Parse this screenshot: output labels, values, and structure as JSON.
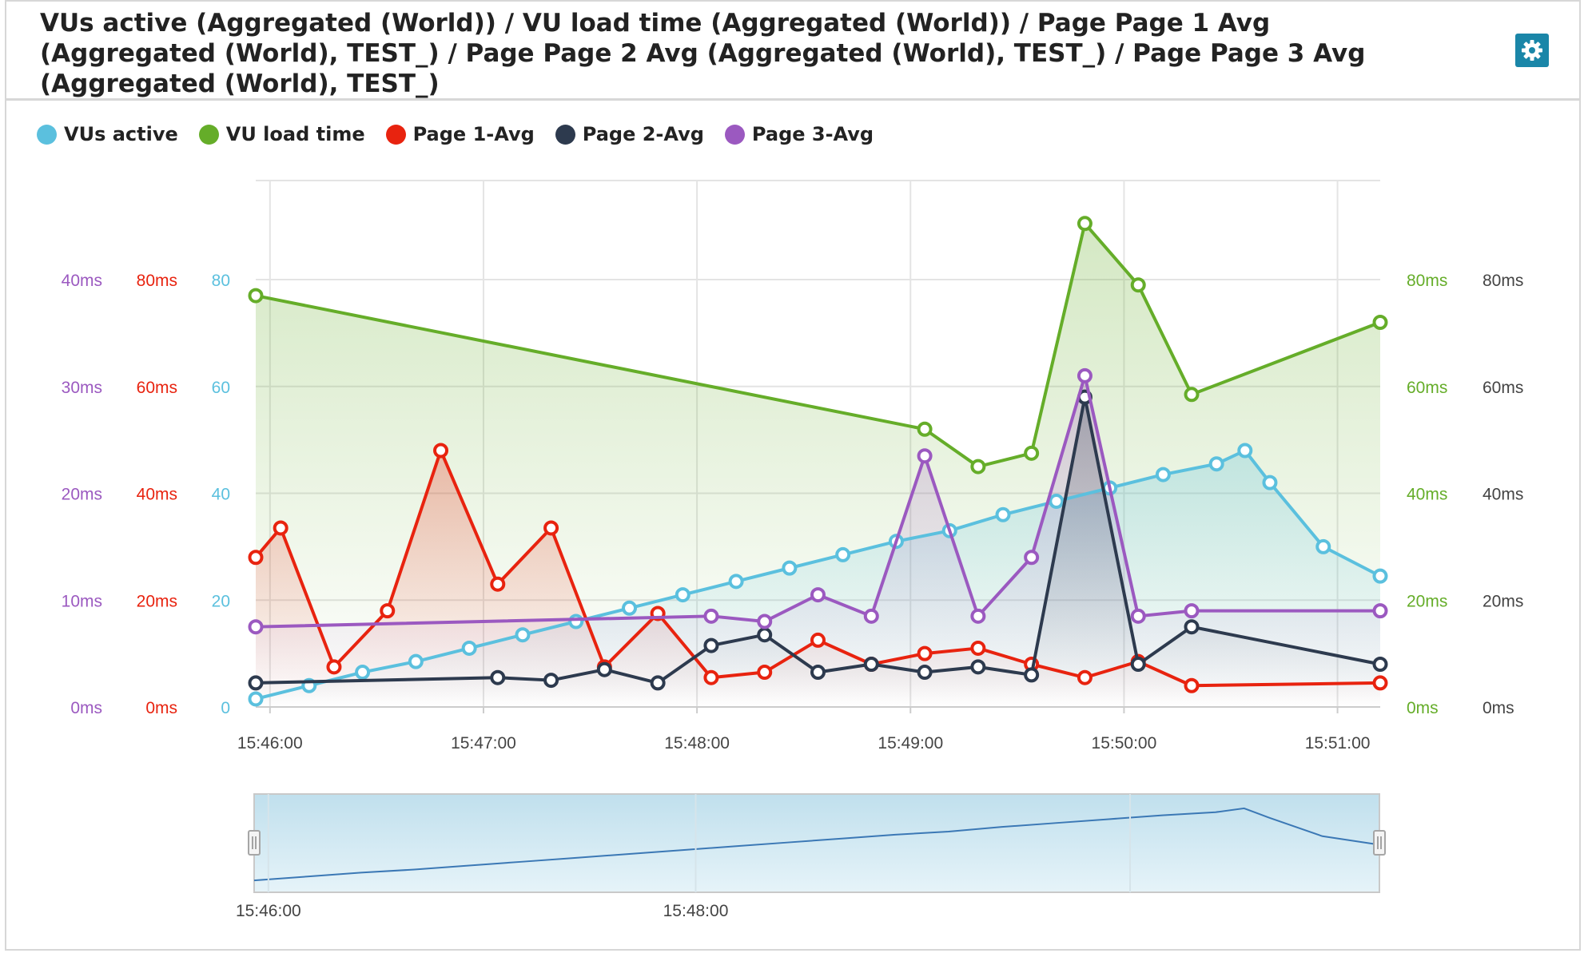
{
  "title": "VUs active (Aggregated (World)) / VU load time (Aggregated (World)) / Page Page 1 Avg (Aggregated (World), TEST_) / Page Page 2 Avg (Aggregated (World), TEST_) / Page Page 3 Avg (Aggregated (World), TEST_)",
  "settings_icon": "gear-icon",
  "colors": {
    "vus": "#5bc0de",
    "vuload": "#65ad29",
    "page1": "#e8230f",
    "page2": "#2d3a4e",
    "page3": "#9b59c0",
    "grid": "#e4e4e4"
  },
  "legend": [
    {
      "key": "vus",
      "label": "VUs active",
      "color": "#5bc0de"
    },
    {
      "key": "vuload",
      "label": "VU load time",
      "color": "#65ad29"
    },
    {
      "key": "page1",
      "label": "Page 1-Avg",
      "color": "#e8230f"
    },
    {
      "key": "page2",
      "label": "Page 2-Avg",
      "color": "#2d3a4e"
    },
    {
      "key": "page3",
      "label": "Page 3-Avg",
      "color": "#9b59c0"
    }
  ],
  "chart_data": {
    "type": "line",
    "x_unit": "time",
    "x_ticks": [
      "15:46:00",
      "15:47:00",
      "15:48:00",
      "15:49:00",
      "15:50:00",
      "15:51:00"
    ],
    "x_range": [
      "15:45:56",
      "15:51:12"
    ],
    "grid": true,
    "legend_position": "top-left",
    "axes": [
      {
        "id": "page3",
        "side": "left",
        "color": "#9b59c0",
        "range": [
          0,
          40
        ],
        "ticks": [
          "0ms",
          "10ms",
          "20ms",
          "30ms",
          "40ms"
        ]
      },
      {
        "id": "page1",
        "side": "left",
        "color": "#e8230f",
        "range": [
          0,
          80
        ],
        "ticks": [
          "0ms",
          "20ms",
          "40ms",
          "60ms",
          "80ms"
        ]
      },
      {
        "id": "vus",
        "side": "left",
        "color": "#5bc0de",
        "range": [
          0,
          80
        ],
        "ticks": [
          "0",
          "20",
          "40",
          "60",
          "80"
        ]
      },
      {
        "id": "vuload",
        "side": "right",
        "color": "#65ad29",
        "range": [
          0,
          80
        ],
        "ticks": [
          "0ms",
          "20ms",
          "40ms",
          "60ms",
          "80ms"
        ]
      },
      {
        "id": "page2",
        "side": "right",
        "color": "#444444",
        "range": [
          0,
          80
        ],
        "ticks": [
          "0ms",
          "20ms",
          "40ms",
          "60ms",
          "80ms"
        ]
      }
    ],
    "series": [
      {
        "key": "vus",
        "name": "VUs active",
        "axis": "vus",
        "area": true,
        "points": [
          [
            "15:45:56",
            1.5
          ],
          [
            "15:46:11",
            4
          ],
          [
            "15:46:26",
            6.5
          ],
          [
            "15:46:41",
            8.5
          ],
          [
            "15:46:56",
            11
          ],
          [
            "15:47:11",
            13.5
          ],
          [
            "15:47:26",
            16
          ],
          [
            "15:47:41",
            18.5
          ],
          [
            "15:47:56",
            21
          ],
          [
            "15:48:11",
            23.5
          ],
          [
            "15:48:26",
            26
          ],
          [
            "15:48:41",
            28.5
          ],
          [
            "15:48:56",
            31
          ],
          [
            "15:49:11",
            33
          ],
          [
            "15:49:26",
            36
          ],
          [
            "15:49:41",
            38.5
          ],
          [
            "15:49:56",
            41
          ],
          [
            "15:50:11",
            43.5
          ],
          [
            "15:50:26",
            45.5
          ],
          [
            "15:50:34",
            48
          ],
          [
            "15:50:41",
            42
          ],
          [
            "15:50:56",
            30
          ],
          [
            "15:51:12",
            24.5
          ]
        ]
      },
      {
        "key": "vuload",
        "name": "VU load time",
        "axis": "vuload",
        "area": true,
        "points": [
          [
            "15:45:56",
            77
          ],
          [
            "15:49:04",
            52
          ],
          [
            "15:49:19",
            45
          ],
          [
            "15:49:34",
            47.5
          ],
          [
            "15:49:49",
            90.5
          ],
          [
            "15:50:04",
            79
          ],
          [
            "15:50:19",
            58.5
          ],
          [
            "15:51:12",
            72
          ]
        ]
      },
      {
        "key": "page1",
        "name": "Page 1-Avg",
        "axis": "page1",
        "area": true,
        "points": [
          [
            "15:45:56",
            28
          ],
          [
            "15:46:03",
            33.5
          ],
          [
            "15:46:18",
            7.5
          ],
          [
            "15:46:33",
            18
          ],
          [
            "15:46:48",
            48
          ],
          [
            "15:47:04",
            23
          ],
          [
            "15:47:19",
            33.5
          ],
          [
            "15:47:34",
            7.5
          ],
          [
            "15:47:49",
            17.5
          ],
          [
            "15:48:04",
            5.5
          ],
          [
            "15:48:19",
            6.5
          ],
          [
            "15:48:34",
            12.5
          ],
          [
            "15:48:49",
            8
          ],
          [
            "15:49:04",
            10
          ],
          [
            "15:49:19",
            11
          ],
          [
            "15:49:34",
            8
          ],
          [
            "15:49:49",
            5.5
          ],
          [
            "15:50:04",
            8.5
          ],
          [
            "15:50:19",
            4
          ],
          [
            "15:51:12",
            4.5
          ]
        ]
      },
      {
        "key": "page2",
        "name": "Page 2-Avg",
        "axis": "page2",
        "area": true,
        "points": [
          [
            "15:45:56",
            4.5
          ],
          [
            "15:47:04",
            5.5
          ],
          [
            "15:47:19",
            5
          ],
          [
            "15:47:34",
            7
          ],
          [
            "15:47:49",
            4.5
          ],
          [
            "15:48:04",
            11.5
          ],
          [
            "15:48:19",
            13.5
          ],
          [
            "15:48:34",
            6.5
          ],
          [
            "15:48:49",
            8
          ],
          [
            "15:49:04",
            6.5
          ],
          [
            "15:49:19",
            7.5
          ],
          [
            "15:49:34",
            6
          ],
          [
            "15:49:49",
            58
          ],
          [
            "15:50:04",
            8
          ],
          [
            "15:50:19",
            15
          ],
          [
            "15:51:12",
            8
          ]
        ]
      },
      {
        "key": "page3",
        "name": "Page 3-Avg",
        "axis": "page3",
        "area": true,
        "points": [
          [
            "15:45:56",
            7.5
          ],
          [
            "15:48:04",
            8.5
          ],
          [
            "15:48:19",
            8
          ],
          [
            "15:48:34",
            10.5
          ],
          [
            "15:48:49",
            8.5
          ],
          [
            "15:49:04",
            23.5
          ],
          [
            "15:49:19",
            8.5
          ],
          [
            "15:49:34",
            14
          ],
          [
            "15:49:49",
            31
          ],
          [
            "15:50:04",
            8.5
          ],
          [
            "15:50:19",
            9
          ],
          [
            "15:51:12",
            9
          ]
        ]
      }
    ],
    "navigator": {
      "series": "vus",
      "x_ticks": [
        "15:46:00",
        "15:48:00"
      ]
    }
  }
}
